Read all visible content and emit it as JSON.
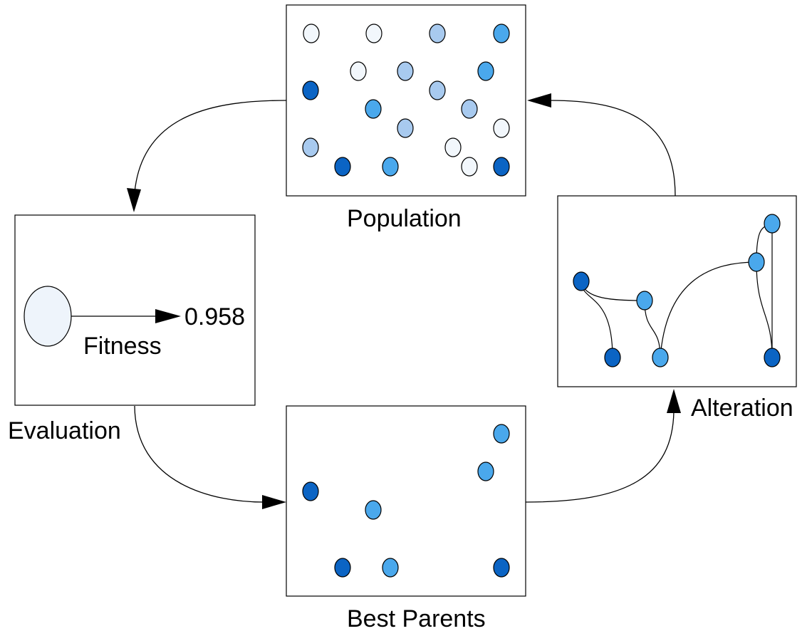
{
  "labels": {
    "population": "Population",
    "evaluation": "Evaluation",
    "fitness": "Fitness",
    "fitness_value": "0.958",
    "best_parents": "Best Parents",
    "alteration": "Alteration"
  },
  "colors": {
    "white": "#f2f7fc",
    "light": "#a8caef",
    "medium": "#4aa8ec",
    "dark": "#0b64c4",
    "fitness_node": "#eef4fb",
    "stroke": "#000000"
  }
}
